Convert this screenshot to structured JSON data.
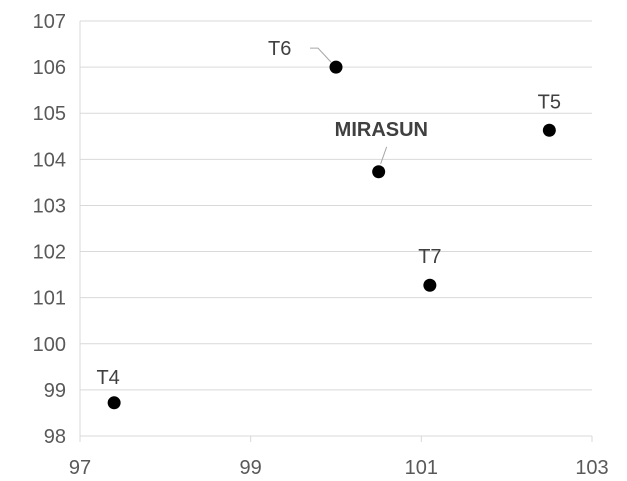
{
  "chart_data": {
    "type": "scatter",
    "title": "",
    "xlabel": "",
    "ylabel": "",
    "xlim": [
      97,
      103
    ],
    "ylim": [
      98,
      107
    ],
    "xticks": [
      "97",
      "99",
      "101",
      "103"
    ],
    "yticks": [
      "98",
      "99",
      "100",
      "101",
      "102",
      "103",
      "104",
      "105",
      "106",
      "107"
    ],
    "grid": "horizontal",
    "points": [
      {
        "label": "T6",
        "x": 100.0,
        "y": 106.0
      },
      {
        "label": "T5",
        "x": 102.5,
        "y": 104.63
      },
      {
        "label": "MIRASUN",
        "x": 100.5,
        "y": 103.73
      },
      {
        "label": "T7",
        "x": 101.1,
        "y": 101.27
      },
      {
        "label": "T4",
        "x": 97.4,
        "y": 98.72
      }
    ]
  }
}
